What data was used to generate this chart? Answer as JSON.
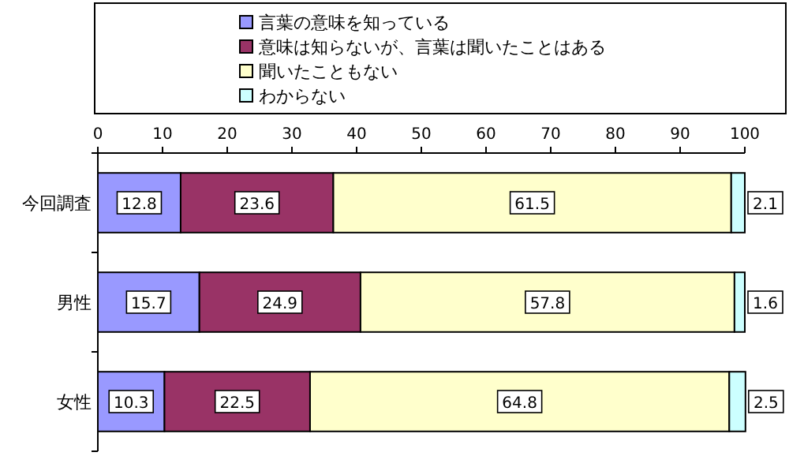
{
  "chart_data": {
    "type": "bar",
    "orientation": "horizontal",
    "stacked": true,
    "categories": [
      "今回調査",
      "男性",
      "女性"
    ],
    "series": [
      {
        "name": "言葉の意味を知っている",
        "color": "#9999ff",
        "values": [
          12.8,
          15.7,
          10.3
        ]
      },
      {
        "name": "意味は知らないが、言葉は聞いたことはある",
        "color": "#993366",
        "values": [
          23.6,
          24.9,
          22.5
        ]
      },
      {
        "name": "聞いたこともない",
        "color": "#ffffcc",
        "values": [
          61.5,
          57.8,
          64.8
        ]
      },
      {
        "name": "わからない",
        "color": "#ccffff",
        "values": [
          2.1,
          1.6,
          2.5
        ]
      }
    ],
    "xlim": [
      0,
      100
    ],
    "xticks": [
      0,
      10,
      20,
      30,
      40,
      50,
      60,
      70,
      80,
      90,
      100
    ],
    "data_labels": true,
    "legend": "top",
    "grid": false
  }
}
